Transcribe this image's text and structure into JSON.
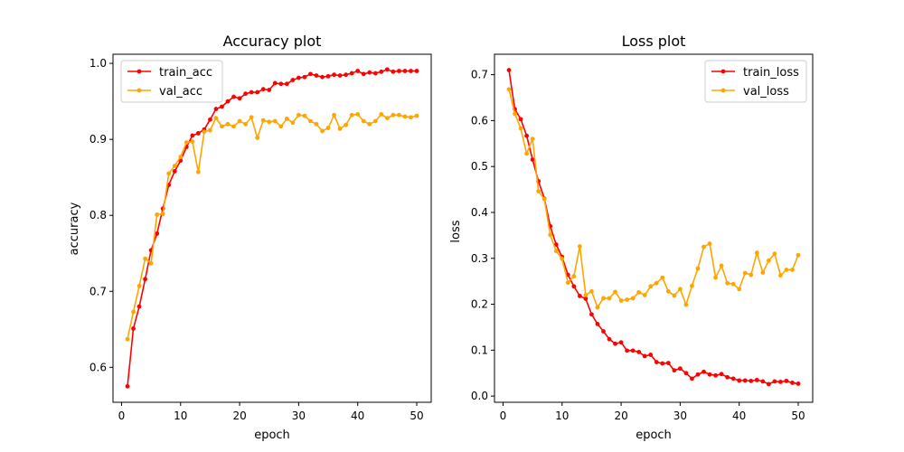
{
  "chart_data": [
    {
      "type": "line",
      "title": "Accuracy plot",
      "xlabel": "epoch",
      "ylabel": "accuracy",
      "xlim": [
        -1.45,
        52.45
      ],
      "ylim": [
        0.554,
        1.012
      ],
      "xticks": [
        0,
        10,
        20,
        30,
        40,
        50
      ],
      "xtick_labels": [
        "0",
        "10",
        "20",
        "30",
        "40",
        "50"
      ],
      "yticks": [
        0.6,
        0.7,
        0.8,
        0.9,
        1.0
      ],
      "ytick_labels": [
        "0.6",
        "0.7",
        "0.8",
        "0.9",
        "1.0"
      ],
      "legend_loc": "upper left",
      "grid": false,
      "x": [
        1,
        2,
        3,
        4,
        5,
        6,
        7,
        8,
        9,
        10,
        11,
        12,
        13,
        14,
        15,
        16,
        17,
        18,
        19,
        20,
        21,
        22,
        23,
        24,
        25,
        26,
        27,
        28,
        29,
        30,
        31,
        32,
        33,
        34,
        35,
        36,
        37,
        38,
        39,
        40,
        41,
        42,
        43,
        44,
        45,
        46,
        47,
        48,
        49,
        50
      ],
      "series": [
        {
          "name": "train_acc",
          "color": "#ff0000",
          "values": [
            0.575,
            0.651,
            0.68,
            0.716,
            0.754,
            0.776,
            0.809,
            0.84,
            0.858,
            0.872,
            0.89,
            0.905,
            0.908,
            0.913,
            0.926,
            0.94,
            0.943,
            0.95,
            0.956,
            0.954,
            0.96,
            0.962,
            0.962,
            0.966,
            0.965,
            0.974,
            0.973,
            0.973,
            0.978,
            0.981,
            0.982,
            0.986,
            0.984,
            0.982,
            0.983,
            0.985,
            0.984,
            0.985,
            0.987,
            0.99,
            0.986,
            0.988,
            0.987,
            0.989,
            0.992,
            0.989,
            0.99,
            0.99,
            0.99,
            0.99
          ]
        },
        {
          "name": "val_acc",
          "color": "#ffa500",
          "values": [
            0.637,
            0.673,
            0.707,
            0.743,
            0.737,
            0.801,
            0.802,
            0.855,
            0.865,
            0.877,
            0.896,
            0.897,
            0.857,
            0.91,
            0.912,
            0.928,
            0.917,
            0.92,
            0.917,
            0.924,
            0.92,
            0.929,
            0.902,
            0.925,
            0.923,
            0.924,
            0.917,
            0.927,
            0.922,
            0.932,
            0.931,
            0.924,
            0.92,
            0.911,
            0.915,
            0.932,
            0.914,
            0.919,
            0.932,
            0.933,
            0.924,
            0.92,
            0.924,
            0.933,
            0.928,
            0.932,
            0.932,
            0.93,
            0.929,
            0.931
          ]
        }
      ]
    },
    {
      "type": "line",
      "title": "Loss plot",
      "xlabel": "epoch",
      "ylabel": "loss",
      "xlim": [
        -1.45,
        52.45
      ],
      "ylim": [
        -0.0135,
        0.7445
      ],
      "xticks": [
        0,
        10,
        20,
        30,
        40,
        50
      ],
      "xtick_labels": [
        "0",
        "10",
        "20",
        "30",
        "40",
        "50"
      ],
      "yticks": [
        0.0,
        0.1,
        0.2,
        0.3,
        0.4,
        0.5,
        0.6,
        0.7
      ],
      "ytick_labels": [
        "0.0",
        "0.1",
        "0.2",
        "0.3",
        "0.4",
        "0.5",
        "0.6",
        "0.7"
      ],
      "legend_loc": "upper right",
      "grid": false,
      "x": [
        1,
        2,
        3,
        4,
        5,
        6,
        7,
        8,
        9,
        10,
        11,
        12,
        13,
        14,
        15,
        16,
        17,
        18,
        19,
        20,
        21,
        22,
        23,
        24,
        25,
        26,
        27,
        28,
        29,
        30,
        31,
        32,
        33,
        34,
        35,
        36,
        37,
        38,
        39,
        40,
        41,
        42,
        43,
        44,
        45,
        46,
        47,
        48,
        49,
        50
      ],
      "series": [
        {
          "name": "train_loss",
          "color": "#ff0000",
          "values": [
            0.71,
            0.625,
            0.603,
            0.567,
            0.515,
            0.468,
            0.43,
            0.37,
            0.33,
            0.303,
            0.264,
            0.239,
            0.218,
            0.212,
            0.178,
            0.157,
            0.141,
            0.124,
            0.114,
            0.117,
            0.099,
            0.099,
            0.096,
            0.087,
            0.09,
            0.074,
            0.071,
            0.072,
            0.056,
            0.06,
            0.05,
            0.038,
            0.047,
            0.053,
            0.047,
            0.045,
            0.048,
            0.041,
            0.038,
            0.034,
            0.034,
            0.033,
            0.035,
            0.032,
            0.026,
            0.032,
            0.031,
            0.033,
            0.029,
            0.027
          ]
        },
        {
          "name": "val_loss",
          "color": "#ffa500",
          "values": [
            0.668,
            0.615,
            0.583,
            0.528,
            0.56,
            0.446,
            0.429,
            0.351,
            0.316,
            0.299,
            0.247,
            0.261,
            0.326,
            0.22,
            0.228,
            0.193,
            0.213,
            0.213,
            0.227,
            0.208,
            0.21,
            0.213,
            0.226,
            0.22,
            0.239,
            0.246,
            0.258,
            0.228,
            0.219,
            0.233,
            0.199,
            0.24,
            0.278,
            0.325,
            0.332,
            0.258,
            0.284,
            0.246,
            0.244,
            0.233,
            0.268,
            0.264,
            0.312,
            0.269,
            0.295,
            0.31,
            0.263,
            0.275,
            0.275,
            0.307
          ]
        }
      ]
    }
  ]
}
